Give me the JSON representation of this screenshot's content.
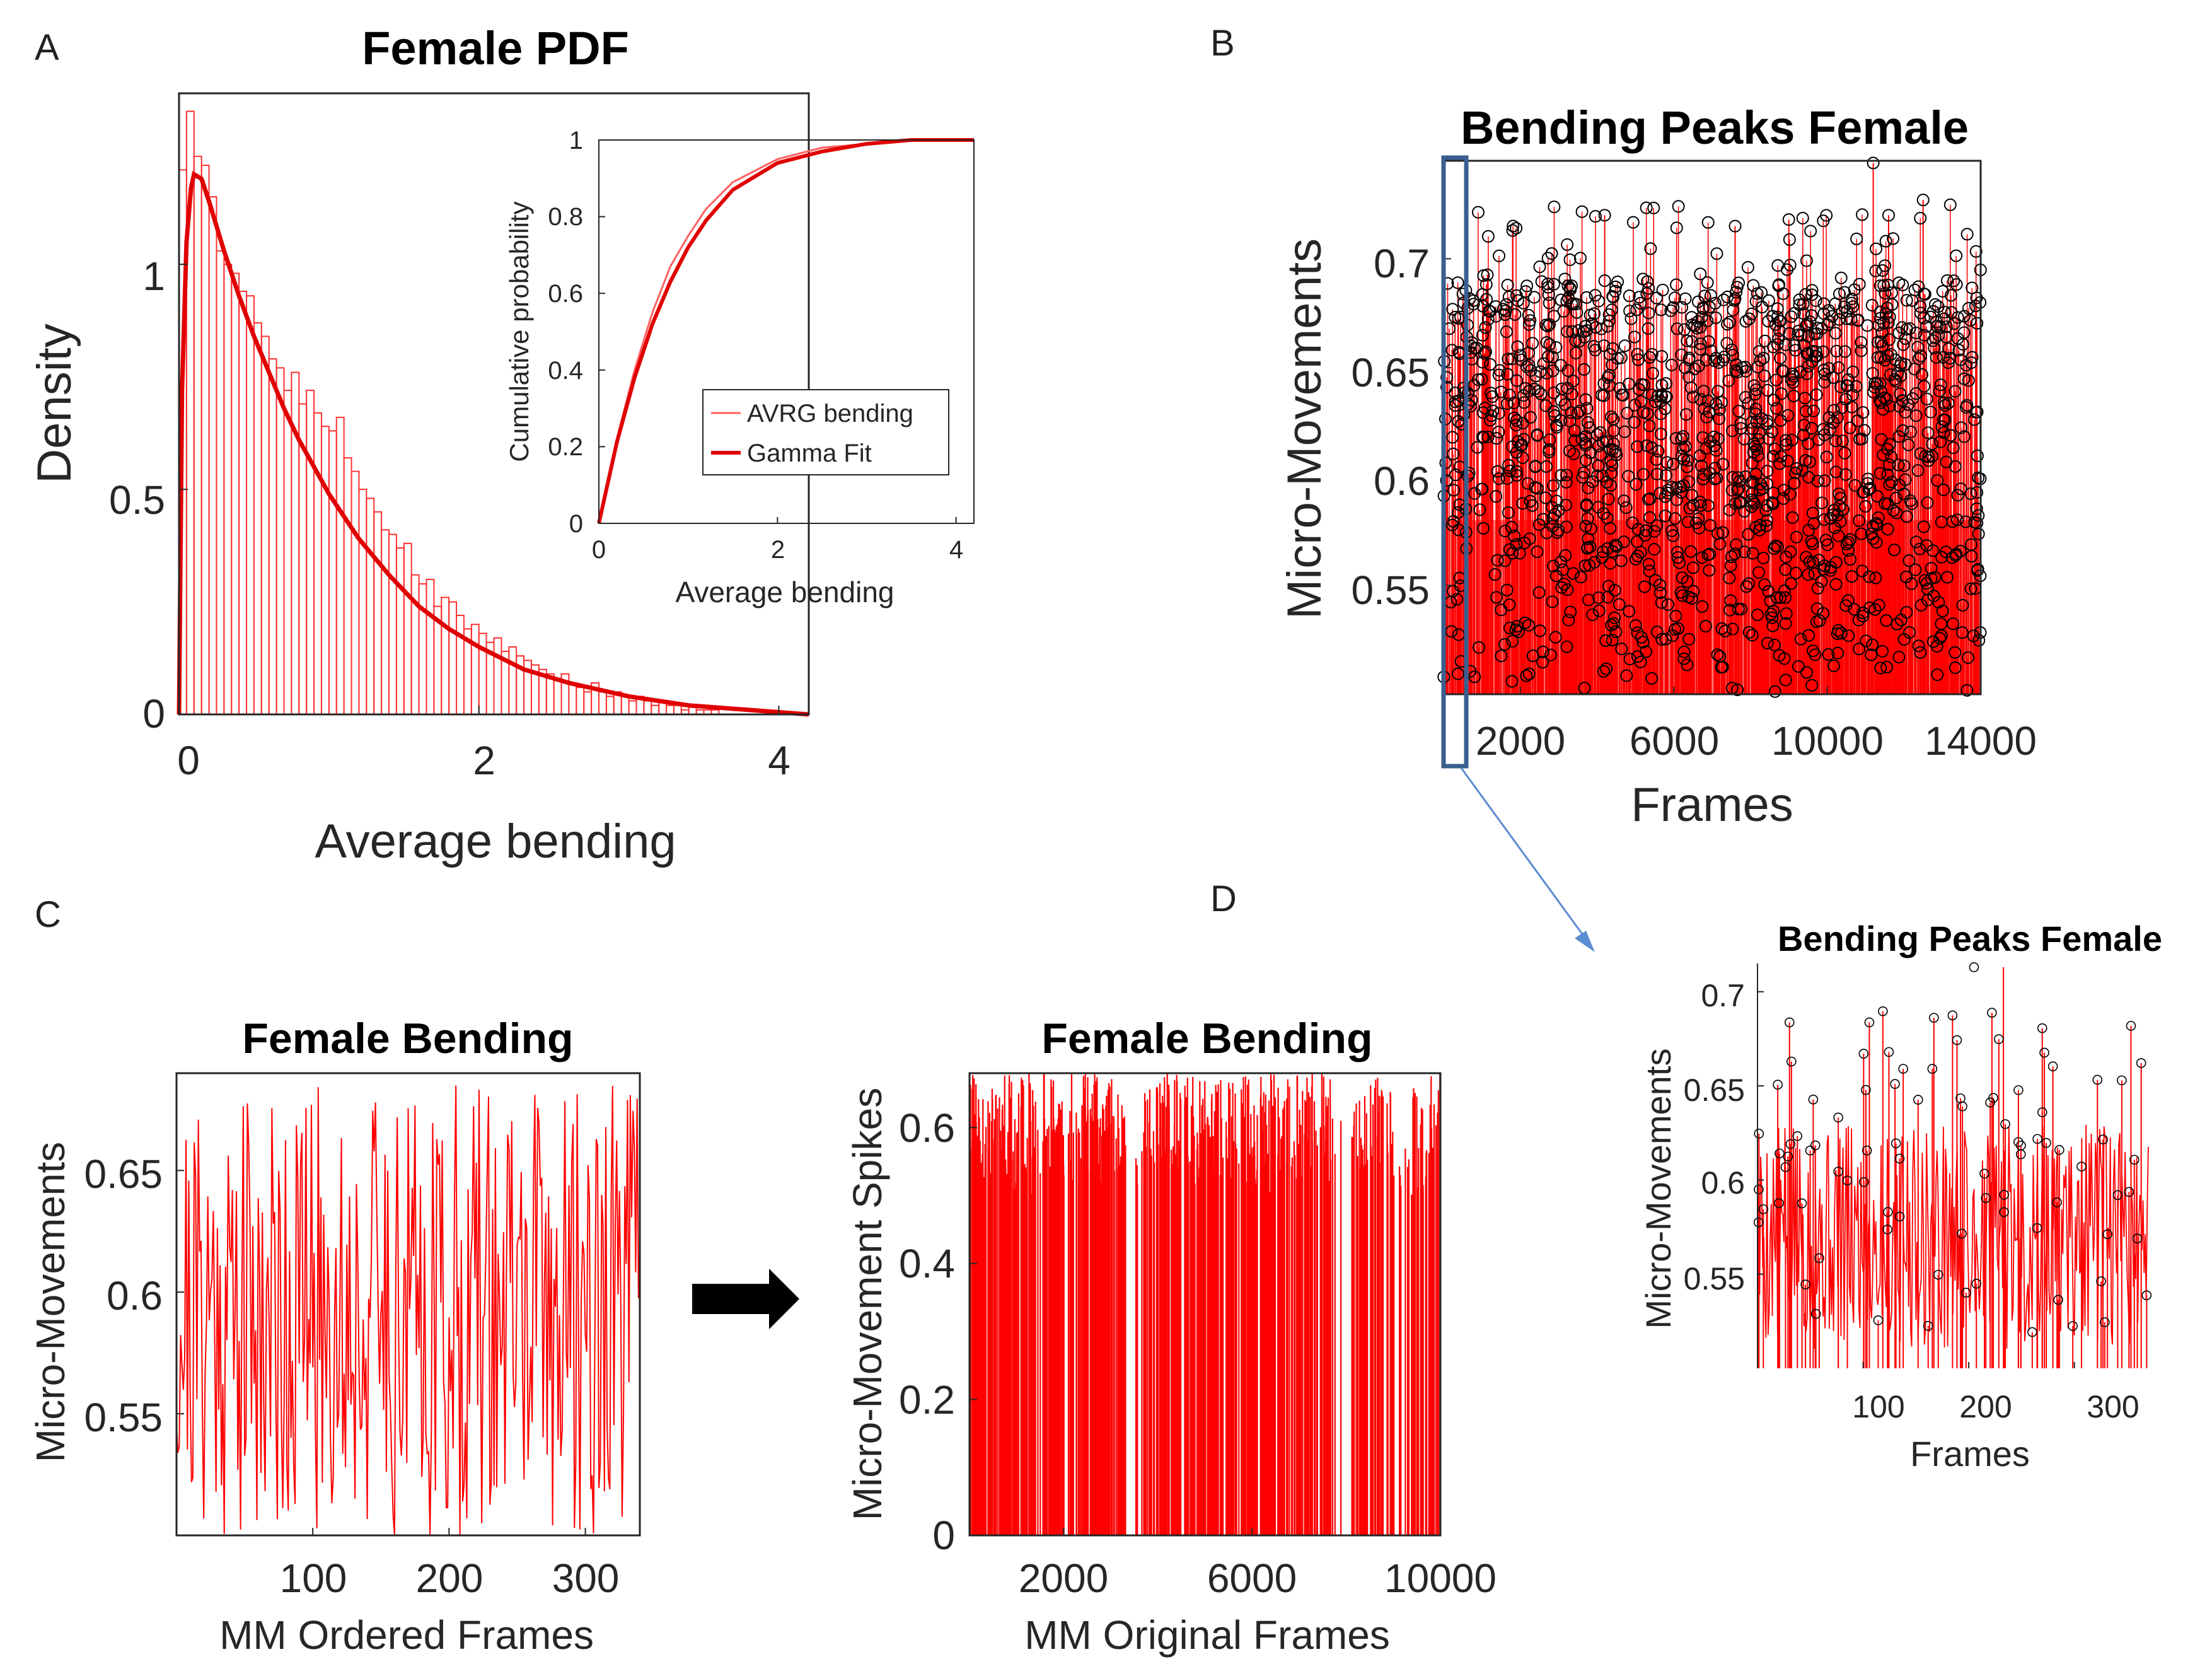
{
  "panel_labels": [
    "A",
    "B",
    "C",
    "D"
  ],
  "colors": {
    "data": "#ff0000",
    "peak_marker": "#000000",
    "highlight": "#3a5f8f",
    "arrow": "#000000",
    "axis": "#262626"
  },
  "chart_data": [
    {
      "id": "A",
      "type": "bar",
      "title": "Female PDF",
      "xlabel": "Average bending",
      "ylabel": "Density",
      "xlim": [
        0,
        4.2
      ],
      "ylim": [
        0,
        1.38
      ],
      "xticks": [
        "0",
        "2",
        "4"
      ],
      "yticks": [
        "0",
        "0.5",
        "1"
      ],
      "bin_width": 0.05,
      "values": [
        1.21,
        1.34,
        1.24,
        1.22,
        1.15,
        1.03,
        1.0,
        0.98,
        0.94,
        0.93,
        0.87,
        0.84,
        0.79,
        0.77,
        0.72,
        0.76,
        0.69,
        0.72,
        0.67,
        0.64,
        0.63,
        0.66,
        0.57,
        0.54,
        0.5,
        0.48,
        0.45,
        0.41,
        0.4,
        0.37,
        0.38,
        0.31,
        0.29,
        0.3,
        0.24,
        0.26,
        0.25,
        0.22,
        0.19,
        0.2,
        0.18,
        0.16,
        0.17,
        0.14,
        0.15,
        0.13,
        0.12,
        0.11,
        0.1,
        0.09,
        0.08,
        0.09,
        0.07,
        0.06,
        0.05,
        0.07,
        0.05,
        0.04,
        0.05,
        0.04,
        0.03,
        0.04,
        0.03,
        0.02,
        0.03,
        0.02,
        0.02,
        0.01,
        0.02,
        0.01,
        0.01,
        0.01
      ],
      "fit": {
        "name": "Gamma Fit",
        "x": [
          0,
          0.02,
          0.05,
          0.08,
          0.1,
          0.15,
          0.2,
          0.3,
          0.4,
          0.5,
          0.6,
          0.7,
          0.8,
          1.0,
          1.2,
          1.4,
          1.6,
          1.8,
          2.0,
          2.3,
          2.6,
          3.0,
          3.4,
          3.8,
          4.2
        ],
        "y": [
          0,
          0.72,
          1.05,
          1.17,
          1.2,
          1.19,
          1.14,
          1.03,
          0.93,
          0.84,
          0.76,
          0.68,
          0.61,
          0.49,
          0.39,
          0.31,
          0.24,
          0.19,
          0.15,
          0.1,
          0.07,
          0.04,
          0.02,
          0.01,
          0.0
        ]
      }
    },
    {
      "id": "A-inset",
      "type": "line",
      "xlabel": "Average bending",
      "ylabel": "Cumulative probability",
      "xlim": [
        0,
        4.2
      ],
      "ylim": [
        0,
        1
      ],
      "xticks": [
        "0",
        "2",
        "4"
      ],
      "yticks": [
        "0",
        "0.2",
        "0.4",
        "0.6",
        "0.8",
        "1"
      ],
      "legend": "bottom-right",
      "series": [
        {
          "name": "AVRG bending",
          "x": [
            0,
            0.2,
            0.4,
            0.6,
            0.8,
            1.0,
            1.2,
            1.5,
            2.0,
            2.5,
            3.0,
            3.5,
            4.2
          ],
          "y": [
            0,
            0.22,
            0.4,
            0.55,
            0.67,
            0.75,
            0.82,
            0.89,
            0.95,
            0.98,
            0.99,
            1.0,
            1.0
          ]
        },
        {
          "name": "Gamma Fit",
          "x": [
            0,
            0.2,
            0.4,
            0.6,
            0.8,
            1.0,
            1.2,
            1.5,
            2.0,
            2.5,
            3.0,
            3.5,
            4.2
          ],
          "y": [
            0,
            0.21,
            0.38,
            0.52,
            0.63,
            0.72,
            0.79,
            0.87,
            0.94,
            0.97,
            0.99,
            1.0,
            1.0
          ]
        }
      ]
    },
    {
      "id": "B",
      "type": "scatter",
      "title": "Bending Peaks Female",
      "xlabel": "Frames",
      "ylabel": "Micro-Movements",
      "xlim": [
        0,
        14000
      ],
      "ylim": [
        0.5,
        0.745
      ],
      "xticks": [
        "2000",
        "6000",
        "10000",
        "14000"
      ],
      "yticks": [
        "0.55",
        "0.6",
        "0.65",
        "0.7"
      ],
      "highlight_region": [
        0,
        360
      ],
      "y_range_of_peaks": [
        0.5,
        0.745
      ]
    },
    {
      "id": "C-left",
      "type": "line",
      "title": "Female Bending",
      "xlabel": "MM Ordered Frames",
      "ylabel": "Micro-Movements",
      "xlim": [
        0,
        340
      ],
      "ylim": [
        0.5,
        0.69
      ],
      "xticks": [
        "100",
        "200",
        "300"
      ],
      "yticks": [
        "0.55",
        "0.6",
        "0.65"
      ],
      "y_range": [
        0.5,
        0.685
      ]
    },
    {
      "id": "C-right",
      "type": "bar",
      "title": "Female Bending",
      "xlabel": "MM Original Frames",
      "ylabel": "Micro-Movement Spikes",
      "xlim": [
        0,
        10000
      ],
      "ylim": [
        0,
        0.68
      ],
      "xticks": [
        "2000",
        "6000",
        "10000"
      ],
      "yticks": [
        "0",
        "0.2",
        "0.4",
        "0.6"
      ],
      "y_range": [
        0.5,
        0.68
      ]
    },
    {
      "id": "D",
      "type": "line",
      "title": "Bending Peaks Female",
      "xlabel": "Frames",
      "ylabel": "Micro-Movements",
      "xlim": [
        0,
        370
      ],
      "ylim": [
        0.5,
        0.715
      ],
      "xticks": [
        "100",
        "200",
        "300"
      ],
      "yticks": [
        "0.55",
        "0.6",
        "0.65",
        "0.7"
      ],
      "y_range": [
        0.51,
        0.715
      ]
    }
  ]
}
